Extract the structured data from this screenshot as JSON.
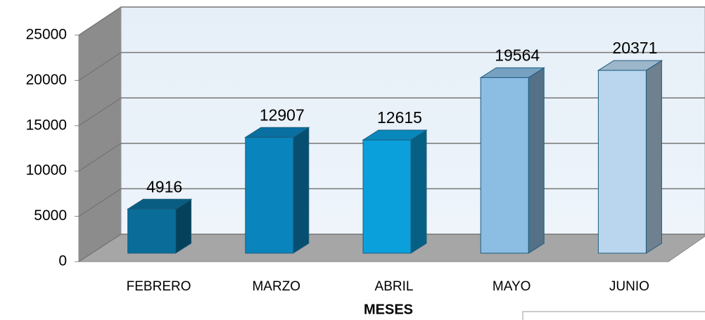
{
  "chart_data": {
    "type": "bar3d",
    "categories": [
      "FEBRERO",
      "MARZO",
      "ABRIL",
      "MAYO",
      "JUNIO"
    ],
    "values": [
      4916,
      12907,
      12615,
      19564,
      20371
    ],
    "colors": [
      "#0a6d99",
      "#0a84bd",
      "#0aa0dc",
      "#8cbde3",
      "#b9d6ee"
    ],
    "x_label": "MESES",
    "ylim": [
      0,
      25000
    ],
    "yticks": [
      0,
      5000,
      10000,
      15000,
      20000,
      25000
    ],
    "grid": true
  }
}
